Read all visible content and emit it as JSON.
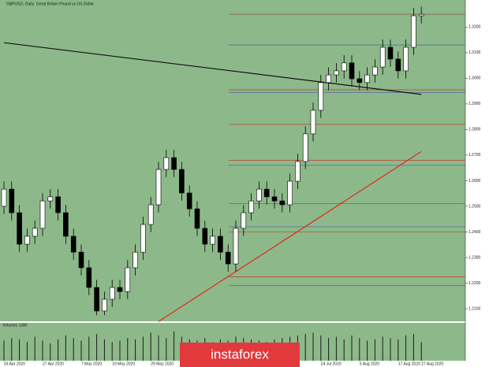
{
  "chart_data": {
    "type": "candlestick",
    "title": "GBPUSD, Daily:  Great Britain Pound vs US Dollar",
    "volume_title": "Volumes 1386",
    "watermark": "instaforex",
    "categories": [
      "03 Apr 2020",
      null,
      null,
      null,
      null,
      "27 Apr 2020",
      null,
      null,
      null,
      null,
      "7 May 2020",
      null,
      null,
      null,
      "19 May 2020",
      null,
      null,
      null,
      null,
      "29 May 2020",
      null,
      null,
      null,
      null,
      null,
      null,
      null,
      null,
      null,
      null,
      null,
      null,
      null,
      null,
      null,
      null,
      null,
      null,
      null,
      null,
      null,
      "24 Jul 2020",
      null,
      null,
      null,
      null,
      "5 Aug 2020",
      null,
      null,
      null,
      null,
      "17 Aug 2020",
      null,
      null,
      "27 Aug 2020"
    ],
    "open": [
      1.25,
      1.2567,
      1.2475,
      1.2352,
      1.2383,
      1.2414,
      1.2521,
      1.2537,
      1.2475,
      1.2383,
      1.2321,
      1.226,
      1.2183,
      1.2091,
      1.2137,
      1.2183,
      1.2167,
      1.226,
      1.2321,
      1.2429,
      1.2506,
      1.2644,
      1.269,
      1.2644,
      1.2552,
      1.249,
      1.2414,
      1.2352,
      1.2383,
      1.2321,
      1.2275,
      1.2414,
      1.2475,
      1.2521,
      1.2567,
      1.2537,
      1.2521,
      1.2506,
      1.2598,
      1.2675,
      1.2783,
      1.2875,
      1.2983,
      1.3013,
      1.3029,
      1.306,
      1.2998,
      1.2983,
      1.3013,
      1.3044,
      1.3121,
      1.3075,
      1.3029,
      1.3121,
      1.3244
    ],
    "high": [
      1.2597,
      1.2597,
      1.2505,
      1.2413,
      1.2444,
      1.2551,
      1.2567,
      1.2567,
      1.2505,
      1.2413,
      1.2351,
      1.229,
      1.2213,
      1.2167,
      1.2213,
      1.2213,
      1.229,
      1.2351,
      1.2459,
      1.2536,
      1.2674,
      1.272,
      1.272,
      1.2674,
      1.2582,
      1.252,
      1.2444,
      1.2413,
      1.2413,
      1.2351,
      1.2444,
      1.2505,
      1.2551,
      1.2597,
      1.2597,
      1.2567,
      1.2551,
      1.2628,
      1.2705,
      1.2813,
      1.2905,
      1.3013,
      1.3043,
      1.3059,
      1.309,
      1.309,
      1.3028,
      1.3043,
      1.3074,
      1.3151,
      1.3151,
      1.3105,
      1.3151,
      1.3274,
      1.328
    ],
    "low": [
      1.247,
      1.2445,
      1.2322,
      1.2322,
      1.2353,
      1.2384,
      1.2491,
      1.2445,
      1.2353,
      1.2291,
      1.223,
      1.2153,
      1.2075,
      1.2075,
      1.2107,
      1.2137,
      1.2137,
      1.223,
      1.2291,
      1.2399,
      1.2476,
      1.2614,
      1.2614,
      1.2522,
      1.246,
      1.2384,
      1.2322,
      1.2322,
      1.2291,
      1.2245,
      1.2245,
      1.2384,
      1.2445,
      1.2491,
      1.2507,
      1.2491,
      1.2476,
      1.2476,
      1.2568,
      1.2645,
      1.2753,
      1.2845,
      1.2953,
      1.2983,
      1.2999,
      1.2968,
      1.2953,
      1.2953,
      1.2983,
      1.3014,
      1.3045,
      1.2999,
      1.2999,
      1.3091,
      1.3214
    ],
    "close": [
      1.2567,
      1.2475,
      1.2352,
      1.2383,
      1.2414,
      1.2521,
      1.2537,
      1.2475,
      1.2383,
      1.2321,
      1.226,
      1.2183,
      1.2091,
      1.2137,
      1.2183,
      1.2167,
      1.226,
      1.2321,
      1.2429,
      1.2506,
      1.2644,
      1.269,
      1.2644,
      1.2552,
      1.249,
      1.2414,
      1.2352,
      1.2383,
      1.2321,
      1.2275,
      1.2414,
      1.2475,
      1.2521,
      1.2567,
      1.2537,
      1.2521,
      1.2506,
      1.2598,
      1.2675,
      1.2783,
      1.2875,
      1.2983,
      1.3013,
      1.3029,
      1.306,
      1.2998,
      1.2983,
      1.3013,
      1.3044,
      1.3121,
      1.3075,
      1.3029,
      1.3121,
      1.3244,
      1.325
    ],
    "volume": [
      1500,
      1700,
      1600,
      1400,
      1800,
      1500,
      1300,
      1600,
      1900,
      1700,
      1500,
      1800,
      2000,
      1600,
      1400,
      1500,
      1700,
      1600,
      1800,
      2100,
      1900,
      1700,
      2200,
      1800,
      1600,
      1500,
      1700,
      1400,
      1600,
      1500,
      1800,
      1700,
      1600,
      1500,
      1400,
      1600,
      1700,
      1800,
      1900,
      2000,
      2100,
      1900,
      1700,
      1800,
      1600,
      1900,
      1700,
      1500,
      1600,
      1800,
      1700,
      1600,
      1900,
      2000,
      1386
    ],
    "ylim": [
      1.206,
      1.3281
    ],
    "vlim": [
      0,
      2600
    ],
    "yticks": [
      {
        "value": 1.21,
        "label": "1.2100"
      },
      {
        "value": 1.22,
        "label": "1.2200"
      },
      {
        "value": 1.23,
        "label": "1.2300"
      },
      {
        "value": 1.24,
        "label": "1.2400"
      },
      {
        "value": 1.25,
        "label": "1.2500"
      },
      {
        "value": 1.26,
        "label": "1.2600"
      },
      {
        "value": 1.27,
        "label": "1.2700"
      },
      {
        "value": 1.28,
        "label": "1.2800"
      },
      {
        "value": 1.29,
        "label": "1.2900"
      },
      {
        "value": 1.3,
        "label": "1.3000"
      },
      {
        "value": 1.31,
        "label": "1.3100"
      },
      {
        "value": 1.32,
        "label": "1.3200"
      }
    ],
    "levels": [
      {
        "value": 1.325,
        "color": "#8b3a3a"
      },
      {
        "value": 1.313,
        "color": "#4a5fa8"
      },
      {
        "value": 1.2955,
        "color": "#c0392b"
      },
      {
        "value": 1.2945,
        "color": "#4a5fa8"
      },
      {
        "value": 1.282,
        "color": "#c0392b"
      },
      {
        "value": 1.268,
        "color": "#c0392b"
      },
      {
        "value": 1.266,
        "color": "#4a5fa8"
      },
      {
        "value": 1.251,
        "color": "#c0392b"
      },
      {
        "value": 1.242,
        "color": "#4a5fa8"
      },
      {
        "value": 1.24,
        "color": "#c0392b"
      },
      {
        "value": 1.2225,
        "color": "#c0392b"
      },
      {
        "value": 1.219,
        "color": "#4a5fa8"
      }
    ],
    "trendlines": [
      {
        "color": "#111111",
        "from": [
          0,
          1.3139
        ],
        "to": [
          54,
          1.2937
        ]
      },
      {
        "color": "#e8231c",
        "from": [
          20,
          1.205
        ],
        "to": [
          54,
          1.2714
        ]
      }
    ],
    "background": "#8db98a",
    "bull_color": "#ffffff",
    "bear_color": "#000000"
  }
}
